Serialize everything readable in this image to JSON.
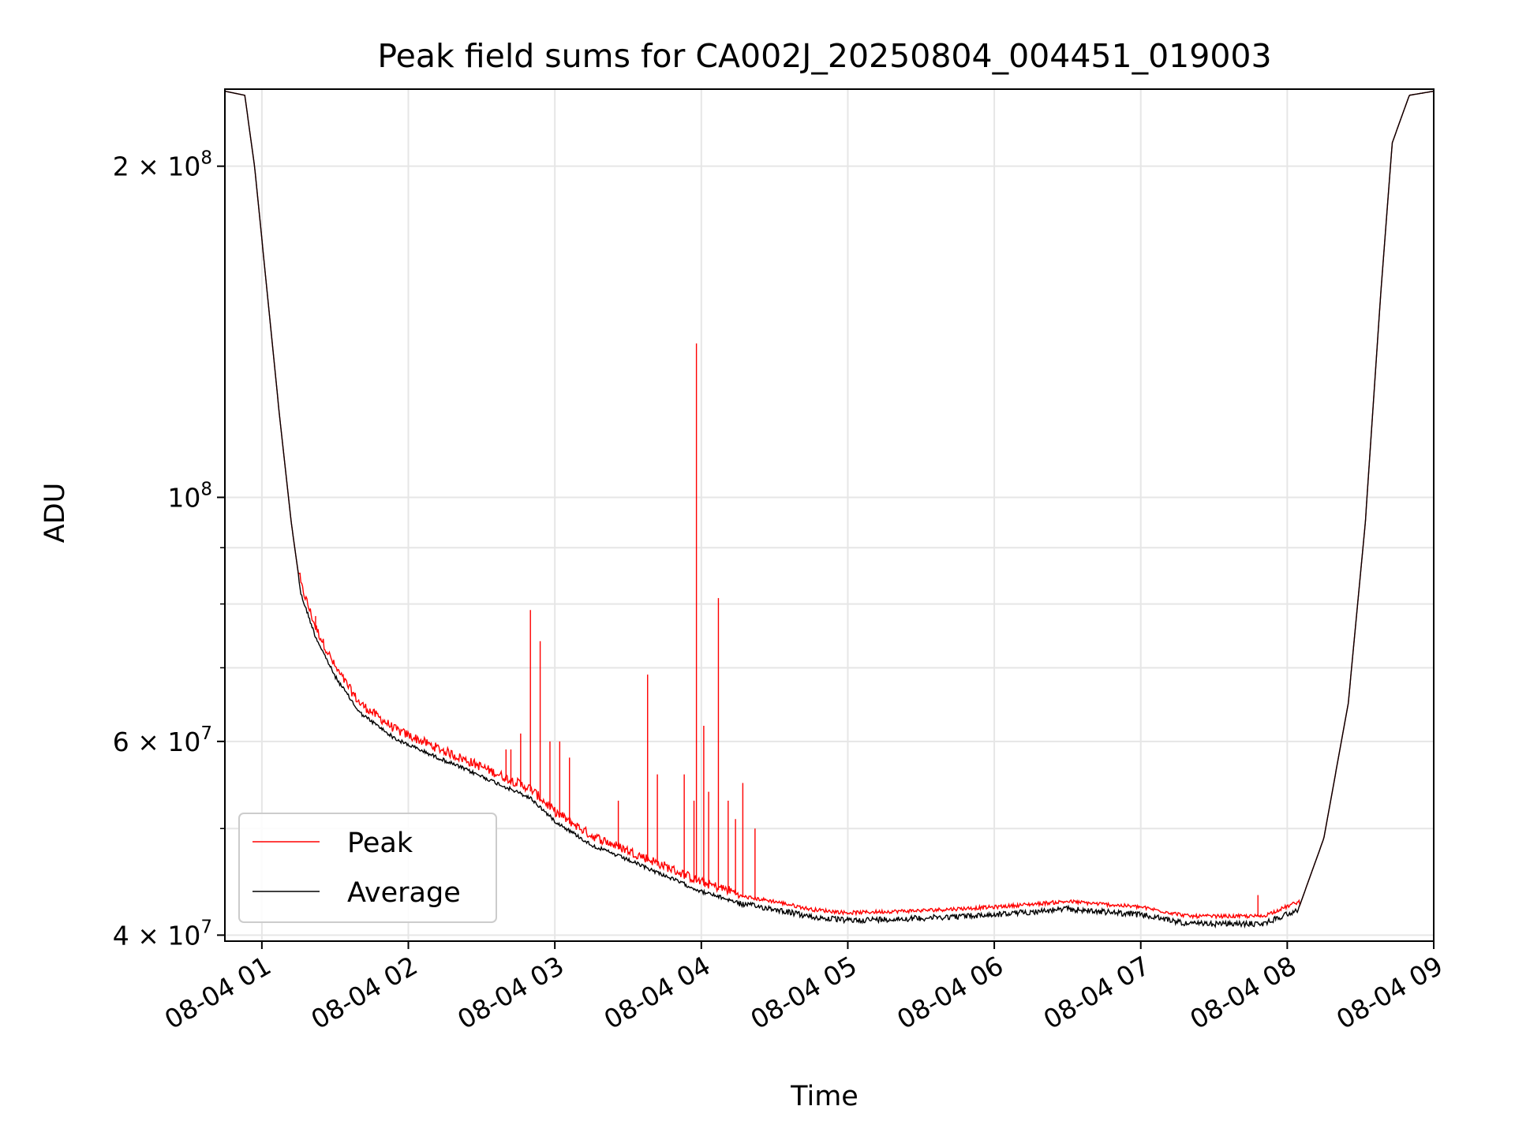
{
  "chart_data": {
    "type": "line",
    "title": "Peak field sums for CA002J_20250804_004451_019003",
    "xlabel": "Time",
    "ylabel": "ADU",
    "y_scale": "log",
    "grid": true,
    "legend_position": "lower-left",
    "xlim": [
      "2025-08-04 00:44:51",
      "2025-08-04 09:00:00"
    ],
    "ylim": [
      39500000,
      235000000
    ],
    "x_ticks": [
      {
        "value": "2025-08-04 01:00",
        "label": "08-04 01"
      },
      {
        "value": "2025-08-04 02:00",
        "label": "08-04 02"
      },
      {
        "value": "2025-08-04 03:00",
        "label": "08-04 03"
      },
      {
        "value": "2025-08-04 04:00",
        "label": "08-04 04"
      },
      {
        "value": "2025-08-04 05:00",
        "label": "08-04 05"
      },
      {
        "value": "2025-08-04 06:00",
        "label": "08-04 06"
      },
      {
        "value": "2025-08-04 07:00",
        "label": "08-04 07"
      },
      {
        "value": "2025-08-04 08:00",
        "label": "08-04 08"
      },
      {
        "value": "2025-08-04 09:00",
        "label": "08-04 09"
      }
    ],
    "y_ticks": [
      {
        "value": 40000000,
        "base": "4 × 10",
        "exp": "7"
      },
      {
        "value": 60000000,
        "base": "6 × 10",
        "exp": "7"
      },
      {
        "value": 100000000,
        "base": "10",
        "exp": "8"
      },
      {
        "value": 200000000,
        "base": "2 × 10",
        "exp": "8"
      }
    ],
    "y_minor_ticks": [
      50000000,
      70000000,
      80000000,
      90000000
    ],
    "series": [
      {
        "name": "Peak",
        "color": "#ff0000",
        "spikes": [
          {
            "x": "2025-08-04 01:22",
            "y": 78000000
          },
          {
            "x": "2025-08-04 02:40",
            "y": 59000000
          },
          {
            "x": "2025-08-04 02:42",
            "y": 59000000
          },
          {
            "x": "2025-08-04 02:46",
            "y": 61000000
          },
          {
            "x": "2025-08-04 02:50",
            "y": 79000000
          },
          {
            "x": "2025-08-04 02:54",
            "y": 74000000
          },
          {
            "x": "2025-08-04 02:58",
            "y": 60000000
          },
          {
            "x": "2025-08-04 03:02",
            "y": 60000000
          },
          {
            "x": "2025-08-04 03:06",
            "y": 58000000
          },
          {
            "x": "2025-08-04 03:26",
            "y": 53000000
          },
          {
            "x": "2025-08-04 03:38",
            "y": 69000000
          },
          {
            "x": "2025-08-04 03:42",
            "y": 56000000
          },
          {
            "x": "2025-08-04 03:53",
            "y": 56000000
          },
          {
            "x": "2025-08-04 03:57",
            "y": 53000000
          },
          {
            "x": "2025-08-04 03:58",
            "y": 138000000
          },
          {
            "x": "2025-08-04 04:01",
            "y": 62000000
          },
          {
            "x": "2025-08-04 04:03",
            "y": 54000000
          },
          {
            "x": "2025-08-04 04:07",
            "y": 81000000
          },
          {
            "x": "2025-08-04 04:11",
            "y": 53000000
          },
          {
            "x": "2025-08-04 04:14",
            "y": 51000000
          },
          {
            "x": "2025-08-04 04:17",
            "y": 55000000
          },
          {
            "x": "2025-08-04 04:22",
            "y": 50000000
          },
          {
            "x": "2025-08-04 07:48",
            "y": 43500000
          }
        ]
      },
      {
        "name": "Average",
        "color": "#000000",
        "points": [
          [
            "2025-08-04 00:44:51",
            234000000
          ],
          [
            "2025-08-04 00:53",
            232000000
          ],
          [
            "2025-08-04 00:57",
            200000000
          ],
          [
            "2025-08-04 01:02",
            155000000
          ],
          [
            "2025-08-04 01:07",
            120000000
          ],
          [
            "2025-08-04 01:12",
            95000000
          ],
          [
            "2025-08-04 01:16",
            82000000
          ],
          [
            "2025-08-04 01:22",
            75000000
          ],
          [
            "2025-08-04 01:30",
            69000000
          ],
          [
            "2025-08-04 01:40",
            64000000
          ],
          [
            "2025-08-04 01:55",
            60500000
          ],
          [
            "2025-08-04 02:10",
            58500000
          ],
          [
            "2025-08-04 02:30",
            56000000
          ],
          [
            "2025-08-04 02:50",
            53500000
          ],
          [
            "2025-08-04 03:00",
            51000000
          ],
          [
            "2025-08-04 03:15",
            48500000
          ],
          [
            "2025-08-04 03:30",
            47000000
          ],
          [
            "2025-08-04 03:45",
            45500000
          ],
          [
            "2025-08-04 04:00",
            44000000
          ],
          [
            "2025-08-04 04:15",
            43000000
          ],
          [
            "2025-08-04 04:30",
            42500000
          ],
          [
            "2025-08-04 04:45",
            41800000
          ],
          [
            "2025-08-04 05:00",
            41500000
          ],
          [
            "2025-08-04 05:30",
            41700000
          ],
          [
            "2025-08-04 06:00",
            42000000
          ],
          [
            "2025-08-04 06:30",
            42500000
          ],
          [
            "2025-08-04 07:00",
            42000000
          ],
          [
            "2025-08-04 07:20",
            41200000
          ],
          [
            "2025-08-04 07:50",
            41200000
          ],
          [
            "2025-08-04 08:05",
            42500000
          ],
          [
            "2025-08-04 08:15",
            49000000
          ],
          [
            "2025-08-04 08:25",
            65000000
          ],
          [
            "2025-08-04 08:32",
            95000000
          ],
          [
            "2025-08-04 08:38",
            150000000
          ],
          [
            "2025-08-04 08:43",
            210000000
          ],
          [
            "2025-08-04 08:50",
            232000000
          ],
          [
            "2025-08-04 09:00",
            234000000
          ]
        ]
      }
    ]
  }
}
